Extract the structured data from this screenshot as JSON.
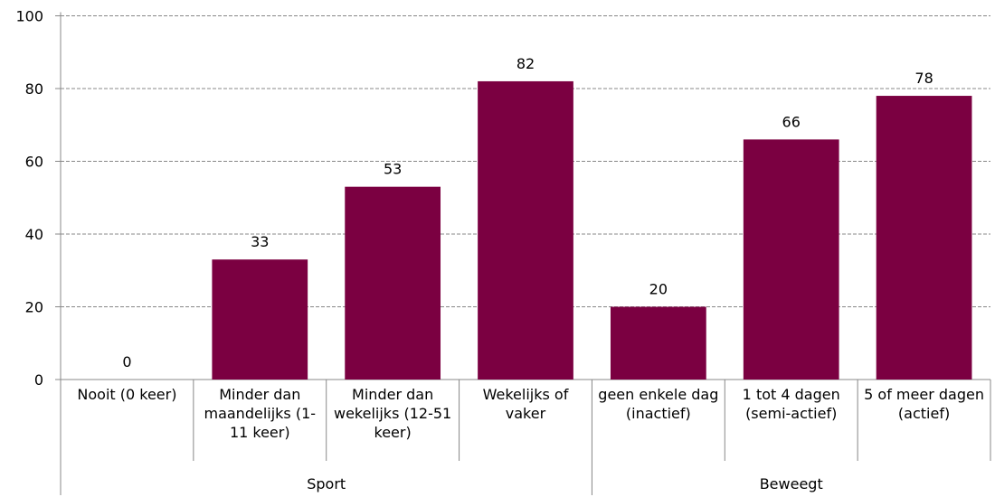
{
  "chart_data": {
    "type": "bar",
    "color": "#7b0041",
    "groups": [
      {
        "name": "Sport",
        "categories": [
          "Nooit (0 keer)",
          "Minder dan maandelijks (1-11 keer)",
          "Minder dan wekelijks (12-51 keer)",
          "Wekelijks of vaker"
        ],
        "values": [
          0,
          33,
          53,
          82
        ]
      },
      {
        "name": "Beweegt",
        "categories": [
          "geen enkele dag (inactief)",
          "1 tot 4 dagen (semi-actief)",
          "5 of meer dagen (actief)"
        ],
        "values": [
          20,
          66,
          78
        ]
      }
    ],
    "ylim": [
      0,
      100
    ],
    "yticks": [
      0,
      20,
      40,
      60,
      80,
      100
    ],
    "grid": true
  }
}
